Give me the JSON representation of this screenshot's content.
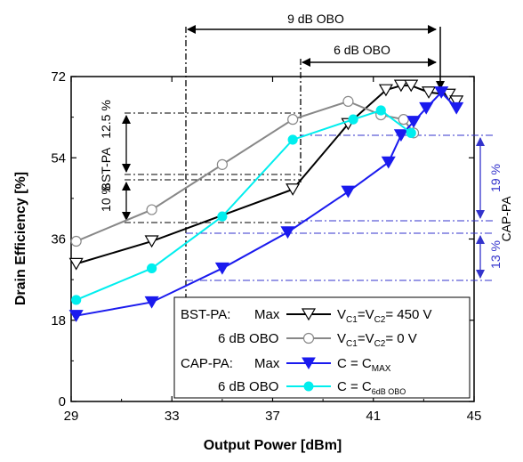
{
  "chart_data": {
    "type": "line",
    "xlabel": "Output Power [dBm]",
    "ylabel": "Drain Efficiency [%]",
    "xlim": [
      29,
      45
    ],
    "ylim": [
      0,
      72
    ],
    "xticks": [
      29,
      33,
      37,
      41,
      45
    ],
    "yticks": [
      0,
      18,
      36,
      54,
      72
    ],
    "series": [
      {
        "name": "BST-PA Max",
        "color": "#000000",
        "marker": "triangle-down-open",
        "x": [
          29.2,
          32.2,
          37.8,
          40.0,
          41.5,
          42.1,
          42.5,
          43.2,
          44.0,
          44.3
        ],
        "y": [
          30.5,
          35.5,
          47.0,
          61.5,
          69.0,
          70.0,
          70.0,
          68.5,
          68.0,
          66.5
        ]
      },
      {
        "name": "BST-PA 6 dB OBO",
        "color": "#888888",
        "marker": "circle-open",
        "x": [
          29.2,
          32.2,
          35.0,
          37.8,
          40.0,
          41.3,
          42.2,
          42.6
        ],
        "y": [
          35.5,
          42.5,
          52.5,
          62.5,
          66.5,
          63.5,
          62.5,
          59.5
        ]
      },
      {
        "name": "CAP-PA Max",
        "color": "#1a1aee",
        "marker": "triangle-down-filled",
        "x": [
          29.2,
          32.2,
          35.0,
          37.6,
          40.0,
          41.6,
          42.1,
          42.6,
          43.1,
          43.7,
          44.3
        ],
        "y": [
          19.0,
          22.0,
          29.5,
          37.5,
          46.5,
          53.0,
          59.0,
          62.0,
          65.0,
          68.5,
          65.0
        ]
      },
      {
        "name": "CAP-PA 6 dB OBO",
        "color": "#00eeee",
        "marker": "circle-filled",
        "x": [
          29.2,
          32.2,
          35.0,
          37.8,
          40.2,
          41.3,
          42.5
        ],
        "y": [
          22.5,
          29.5,
          41.0,
          58.0,
          62.5,
          64.5,
          59.5
        ]
      }
    ],
    "annotations": {
      "obo9": "9 dB OBO",
      "obo6": "6 dB OBO",
      "bst_label": "BST-PA",
      "bst_12p5": "12.5 %",
      "bst_10": "10 %",
      "cap_label": "CAP-PA",
      "cap_19": "19 %",
      "cap_13": "13 %"
    },
    "legend": {
      "position": "bottom-right",
      "rows": [
        {
          "prefix": "BST-PA:",
          "mode": "Max",
          "cond_main": "V",
          "cond_sub1": "C1",
          "cond_mid": "=V",
          "cond_sub2": "C2",
          "cond_end": "= 450 V"
        },
        {
          "prefix": "",
          "mode": "6 dB OBO",
          "cond_main": "V",
          "cond_sub1": "C1",
          "cond_mid": "=V",
          "cond_sub2": "C2",
          "cond_end": "= 0 V"
        },
        {
          "prefix": "CAP-PA:",
          "mode": "Max",
          "cond_main": "C = C",
          "cond_sub1": "MAX",
          "cond_mid": "",
          "cond_sub2": "",
          "cond_end": ""
        },
        {
          "prefix": "",
          "mode": "6 dB OBO",
          "cond_main": "C = C",
          "cond_sub1": "6dB OBO",
          "cond_mid": "",
          "cond_sub2": "",
          "cond_end": ""
        }
      ]
    }
  }
}
